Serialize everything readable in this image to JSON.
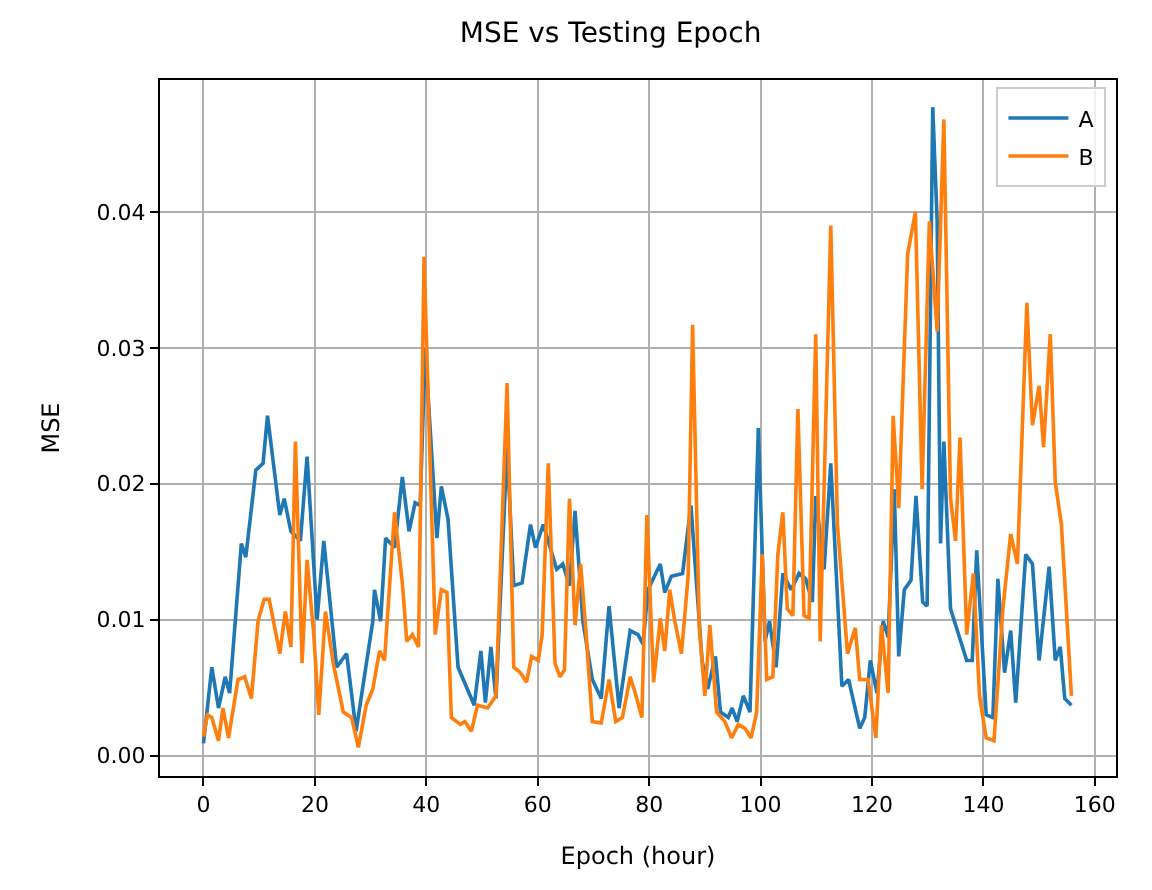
{
  "chart_data": {
    "type": "line",
    "title": "MSE vs Testing Epoch",
    "xlabel": "Epoch (hour)",
    "ylabel": "MSE",
    "xlim": [
      -7.8,
      163.8
    ],
    "xticks": [
      0,
      20,
      40,
      60,
      80,
      100,
      120,
      140,
      160
    ],
    "ylim": [
      -0.0015,
      0.0497
    ],
    "yticks": [
      {
        "value": 0,
        "label": "0.00"
      },
      {
        "value": 0.01,
        "label": "0.01"
      },
      {
        "value": 0.02,
        "label": "0.02"
      },
      {
        "value": 0.03,
        "label": "0.03"
      },
      {
        "value": 0.04,
        "label": "0.04"
      }
    ],
    "grid": true,
    "legend": "top right",
    "series": [
      {
        "name": "A",
        "color": "#1f77b4",
        "x": [
          0,
          1.5,
          2.7,
          3.9,
          4.7,
          6.8,
          7.6,
          9.4,
          10.7,
          11.5,
          13.7,
          14.5,
          15.7,
          17.4,
          18.6,
          20.4,
          21.6,
          23.9,
          25.7,
          27.4,
          30.4,
          30.7,
          31.8,
          32.7,
          34.3,
          35.7,
          36.9,
          38,
          38.9,
          39.8,
          41.9,
          42.7,
          43.9,
          45.7,
          48.6,
          49.8,
          50.6,
          51.6,
          52.5,
          54.5,
          55.7,
          57.2,
          58.7,
          59.6,
          61,
          63.4,
          64.5,
          65.7,
          66.7,
          68.1,
          69.8,
          71.4,
          72.8,
          74.6,
          76.6,
          78,
          78.9,
          79.8,
          82,
          82.8,
          84,
          86,
          87.5,
          89.5,
          90.5,
          91.9,
          92.8,
          94.2,
          94.9,
          95.8,
          96.9,
          98.1,
          99.6,
          100.8,
          101.6,
          102.8,
          104,
          105.5,
          106.9,
          108.1,
          109.3,
          109.9,
          111.4,
          112.6,
          114.6,
          115.8,
          117.8,
          118.7,
          119.7,
          120.9,
          122,
          122.9,
          124,
          124.8,
          125.8,
          127,
          127.9,
          129.1,
          129.9,
          130.9,
          131.7,
          132.3,
          132.9,
          134.1,
          137,
          138,
          138.8,
          140.5,
          141.7,
          142.6,
          143.8,
          144.9,
          145.8,
          147.6,
          148.8,
          150,
          151.8,
          152.9,
          153.8,
          154.6,
          155.8
        ],
        "values": [
          0.0009,
          0.0065,
          0.0035,
          0.0058,
          0.0046,
          0.0156,
          0.0146,
          0.021,
          0.0215,
          0.025,
          0.0177,
          0.0189,
          0.0165,
          0.0158,
          0.022,
          0.01,
          0.0158,
          0.0065,
          0.0075,
          0.0018,
          0.0099,
          0.0122,
          0.0099,
          0.016,
          0.0153,
          0.0205,
          0.0165,
          0.0186,
          0.0184,
          0.03,
          0.016,
          0.0198,
          0.0174,
          0.0065,
          0.0037,
          0.0077,
          0.0039,
          0.008,
          0.0042,
          0.0227,
          0.0125,
          0.0127,
          0.017,
          0.0153,
          0.017,
          0.0137,
          0.0141,
          0.0125,
          0.018,
          0.0099,
          0.0056,
          0.0042,
          0.011,
          0.0035,
          0.0092,
          0.0089,
          0.0082,
          0.0122,
          0.0141,
          0.012,
          0.0132,
          0.0134,
          0.0184,
          0.007,
          0.0049,
          0.0073,
          0.0032,
          0.0028,
          0.0035,
          0.0025,
          0.0044,
          0.0032,
          0.0241,
          0.0084,
          0.0099,
          0.0065,
          0.0134,
          0.0122,
          0.0134,
          0.013,
          0.0113,
          0.0191,
          0.0137,
          0.0215,
          0.0051,
          0.0056,
          0.002,
          0.0028,
          0.007,
          0.0046,
          0.0099,
          0.0087,
          0.0196,
          0.0073,
          0.0122,
          0.0129,
          0.0191,
          0.0113,
          0.011,
          0.0477,
          0.0393,
          0.0156,
          0.0231,
          0.0108,
          0.007,
          0.007,
          0.0151,
          0.003,
          0.0028,
          0.013,
          0.0061,
          0.0092,
          0.0039,
          0.0148,
          0.0141,
          0.007,
          0.0139,
          0.007,
          0.008,
          0.0042,
          0.0037
        ]
      },
      {
        "name": "B",
        "color": "#ff7f0e",
        "x": [
          0,
          0.7,
          1.5,
          2.7,
          3.5,
          4.5,
          6.2,
          7.4,
          8.6,
          9.8,
          10.9,
          11.8,
          13.7,
          14.7,
          15.7,
          16.5,
          17.7,
          18.6,
          19.8,
          20.7,
          21.9,
          23.3,
          25.1,
          26.6,
          27.8,
          29.2,
          30.4,
          31.6,
          32.5,
          34.3,
          35.7,
          36.5,
          37.5,
          38.6,
          39.6,
          41.6,
          42.7,
          43.7,
          44.5,
          46.1,
          46.9,
          48.1,
          49.2,
          51,
          52.5,
          54.5,
          55.7,
          56.9,
          58,
          58.9,
          60.1,
          60.8,
          61.9,
          63.1,
          64,
          64.8,
          65.7,
          66.7,
          67.7,
          68.7,
          69.8,
          71.4,
          72.8,
          74,
          75.2,
          76.6,
          77.5,
          78.7,
          79.6,
          80.8,
          82,
          82.8,
          83.7,
          84.6,
          85.8,
          87,
          87.8,
          89,
          90,
          90.9,
          92.1,
          93.6,
          94.8,
          96,
          97.2,
          98.3,
          99.3,
          100.3,
          101.1,
          102.2,
          103.1,
          104,
          104.8,
          105.8,
          106.7,
          107.8,
          108.7,
          109.9,
          110.7,
          112.6,
          113.8,
          115.6,
          117,
          117.8,
          119.3,
          120.7,
          121.7,
          122.9,
          123.8,
          124.8,
          126.4,
          127.8,
          129,
          130.3,
          131.7,
          132.9,
          134.1,
          135,
          135.8,
          137,
          138.2,
          139.3,
          140.5,
          141.9,
          143.5,
          144.9,
          146.1,
          147.8,
          148.8,
          150,
          150.8,
          152,
          152.9,
          154,
          155.8
        ],
        "values": [
          0.0014,
          0.003,
          0.0028,
          0.0011,
          0.0035,
          0.0013,
          0.0056,
          0.0058,
          0.0042,
          0.0099,
          0.0115,
          0.0115,
          0.0075,
          0.0106,
          0.008,
          0.0231,
          0.0068,
          0.0144,
          0.0089,
          0.003,
          0.0106,
          0.0068,
          0.0032,
          0.0028,
          0.0006,
          0.0037,
          0.0049,
          0.0077,
          0.007,
          0.0179,
          0.0127,
          0.0084,
          0.0089,
          0.008,
          0.0367,
          0.0089,
          0.0122,
          0.012,
          0.0028,
          0.0023,
          0.0025,
          0.0018,
          0.0037,
          0.0035,
          0.0044,
          0.0274,
          0.0065,
          0.0061,
          0.0054,
          0.0073,
          0.007,
          0.0089,
          0.0215,
          0.0068,
          0.0058,
          0.0063,
          0.0189,
          0.0096,
          0.0141,
          0.0089,
          0.0025,
          0.0024,
          0.0056,
          0.0025,
          0.0028,
          0.0058,
          0.0046,
          0.0028,
          0.0177,
          0.0054,
          0.0101,
          0.0077,
          0.0122,
          0.0099,
          0.0075,
          0.0132,
          0.0317,
          0.0094,
          0.0044,
          0.0096,
          0.0032,
          0.0025,
          0.0013,
          0.0023,
          0.002,
          0.0013,
          0.0032,
          0.0148,
          0.0056,
          0.0058,
          0.0148,
          0.0179,
          0.0108,
          0.0103,
          0.0255,
          0.0103,
          0.0101,
          0.031,
          0.0084,
          0.039,
          0.017,
          0.0075,
          0.0094,
          0.0056,
          0.0056,
          0.0013,
          0.0096,
          0.0046,
          0.025,
          0.0182,
          0.0369,
          0.04,
          0.0196,
          0.0393,
          0.0312,
          0.0468,
          0.0189,
          0.0158,
          0.0234,
          0.0089,
          0.0134,
          0.0044,
          0.0013,
          0.0011,
          0.0108,
          0.0163,
          0.0141,
          0.0333,
          0.0243,
          0.0272,
          0.0227,
          0.031,
          0.0201,
          0.017,
          0.0044
        ]
      }
    ]
  }
}
